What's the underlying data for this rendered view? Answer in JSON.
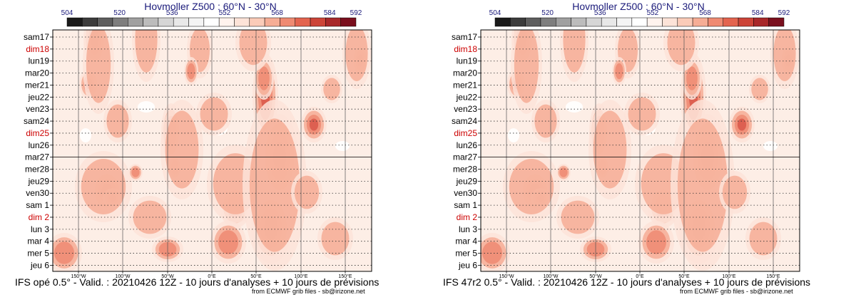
{
  "chart_data": [
    {
      "type": "heatmap",
      "title": "Hovmoller Z500 : 60°N - 30°N",
      "colorbar": {
        "tick_labels": [
          "504",
          "520",
          "536",
          "552",
          "568",
          "584",
          "592"
        ],
        "tick_values": [
          504,
          520,
          536,
          552,
          568,
          584,
          592
        ],
        "colors": [
          "#1a1a1a",
          "#3c3c3c",
          "#5e5e5e",
          "#7e7e7e",
          "#a0a0a0",
          "#bcbcbc",
          "#d6d6d6",
          "#e8e8e8",
          "#f4f4f4",
          "#ffffff",
          "#fff3ee",
          "#fde3d8",
          "#fbcbb8",
          "#f6ad95",
          "#ef8a72",
          "#e3644f",
          "#cc4438",
          "#a8282a",
          "#7a0f1e"
        ]
      },
      "y_labels": [
        "sam17",
        "dim18",
        "lun19",
        "mar20",
        "mer21",
        "jeu22",
        "ven23",
        "sam24",
        "dim25",
        "lun26",
        "mar27",
        "mer28",
        "jeu29",
        "ven30",
        "sam 1",
        "dim 2",
        "lun 3",
        "mar 4",
        "mer 5",
        "jeu 6"
      ],
      "weekend_color": "#cc0000",
      "weekend_labels": [
        "dim18",
        "dim25",
        "dim 2"
      ],
      "x_ticks": [
        "150°W",
        "100°W",
        "50°W",
        "0°E",
        "50°E",
        "100°E",
        "150°E"
      ],
      "caption": "IFS opé 0.5° - Valid. : 20210426 12Z - 10 jours d'analyses + 10 jours de prévisions",
      "credit": "from ECMWF grib files - sb@irizone.net"
    },
    {
      "type": "heatmap",
      "title": "Hovmoller Z500 : 60°N - 30°N",
      "colorbar": {
        "tick_labels": [
          "504",
          "520",
          "536",
          "552",
          "568",
          "584",
          "592"
        ],
        "tick_values": [
          504,
          520,
          536,
          552,
          568,
          584,
          592
        ],
        "colors": [
          "#1a1a1a",
          "#3c3c3c",
          "#5e5e5e",
          "#7e7e7e",
          "#a0a0a0",
          "#bcbcbc",
          "#d6d6d6",
          "#e8e8e8",
          "#f4f4f4",
          "#ffffff",
          "#fff3ee",
          "#fde3d8",
          "#fbcbb8",
          "#f6ad95",
          "#ef8a72",
          "#e3644f",
          "#cc4438",
          "#a8282a",
          "#7a0f1e"
        ]
      },
      "y_labels": [
        "sam17",
        "dim18",
        "lun19",
        "mar20",
        "mer21",
        "jeu22",
        "ven23",
        "sam24",
        "dim25",
        "lun26",
        "mar27",
        "mer28",
        "jeu29",
        "ven30",
        "sam 1",
        "dim 2",
        "lun 3",
        "mar 4",
        "mer 5",
        "jeu 6"
      ],
      "weekend_color": "#cc0000",
      "weekend_labels": [
        "dim18",
        "dim25",
        "dim 2"
      ],
      "x_ticks": [
        "150°W",
        "100°W",
        "50°W",
        "0°E",
        "50°E",
        "100°E",
        "150°E"
      ],
      "caption": "IFS 47r2 0.5° - Valid. : 20210426 12Z - 10 jours d'analyses + 10 jours de prévisions",
      "credit": "from ECMWF grib files - sb@irizone.net"
    }
  ]
}
